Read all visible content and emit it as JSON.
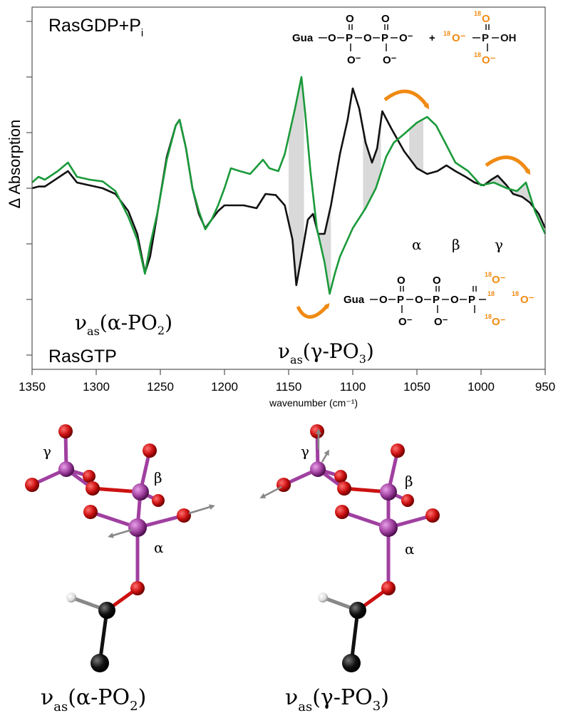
{
  "chart_data": {
    "type": "line",
    "xlabel": "wavenumber (cm⁻¹)",
    "ylabel": "Δ Absorption",
    "xlim": [
      1350,
      950
    ],
    "x_reversed": true,
    "x_ticks": [
      "1350",
      "1300",
      "1250",
      "1200",
      "1150",
      "1100",
      "1050",
      "1000",
      "950"
    ],
    "y_tick_labels": "none",
    "grid": false,
    "y_units": "arbitrary",
    "series": [
      {
        "color": "#111111",
        "x": [
          1350,
          1345,
          1340,
          1330,
          1322,
          1315,
          1305,
          1295,
          1285,
          1275,
          1268,
          1262,
          1258,
          1252,
          1245,
          1238,
          1235,
          1230,
          1225,
          1220,
          1215,
          1210,
          1205,
          1200,
          1192,
          1185,
          1175,
          1168,
          1160,
          1153,
          1147,
          1144,
          1140,
          1135,
          1131,
          1127,
          1122,
          1117,
          1110,
          1104,
          1100,
          1095,
          1090,
          1085,
          1081,
          1077,
          1070,
          1060,
          1050,
          1042,
          1034,
          1027,
          1020,
          1012,
          1005,
          998,
          992,
          987,
          980,
          975,
          968,
          962,
          955,
          950
        ],
        "y": [
          0.0,
          0.03,
          0.03,
          0.18,
          0.3,
          0.1,
          0.05,
          0.0,
          -0.1,
          -0.4,
          -0.8,
          -1.48,
          -1.2,
          -0.4,
          0.55,
          1.1,
          1.2,
          0.7,
          0.0,
          -0.45,
          -0.7,
          -0.55,
          -0.4,
          -0.3,
          -0.3,
          -0.3,
          -0.35,
          -0.1,
          -0.12,
          -0.3,
          -0.9,
          -1.7,
          -1.2,
          -0.55,
          -0.45,
          -0.8,
          -0.8,
          -0.3,
          0.6,
          1.2,
          1.75,
          1.4,
          0.8,
          0.45,
          0.7,
          1.35,
          1.05,
          0.65,
          0.35,
          0.25,
          0.3,
          0.4,
          0.3,
          0.2,
          0.1,
          0.05,
          0.15,
          0.22,
          0.05,
          -0.1,
          -0.15,
          -0.25,
          -0.45,
          -0.7
        ]
      },
      {
        "color": "#1a9a3a",
        "x": [
          1350,
          1345,
          1340,
          1330,
          1322,
          1315,
          1305,
          1295,
          1285,
          1275,
          1268,
          1262,
          1258,
          1252,
          1245,
          1238,
          1235,
          1230,
          1225,
          1220,
          1215,
          1210,
          1205,
          1200,
          1195,
          1188,
          1180,
          1170,
          1165,
          1158,
          1153,
          1150,
          1145,
          1140,
          1137,
          1133,
          1128,
          1122,
          1118,
          1114,
          1110,
          1100,
          1090,
          1082,
          1074,
          1068,
          1060,
          1050,
          1042,
          1035,
          1028,
          1020,
          1010,
          1000,
          990,
          980,
          972,
          965,
          958,
          950
        ],
        "y": [
          0.1,
          0.2,
          0.15,
          0.3,
          0.45,
          0.2,
          0.15,
          0.12,
          -0.05,
          -0.5,
          -0.9,
          -1.5,
          -1.0,
          -0.4,
          0.5,
          1.1,
          1.2,
          0.7,
          0.0,
          -0.4,
          -0.72,
          -0.55,
          -0.3,
          0.0,
          0.35,
          0.3,
          0.25,
          0.5,
          0.35,
          0.3,
          0.6,
          0.9,
          1.4,
          1.95,
          1.3,
          0.3,
          -0.7,
          -1.3,
          -1.85,
          -1.5,
          -1.2,
          -0.7,
          -0.35,
          0.0,
          0.55,
          0.8,
          0.95,
          1.15,
          1.25,
          1.1,
          0.8,
          0.45,
          0.3,
          0.05,
          0.1,
          0.0,
          -0.05,
          0.1,
          -0.4,
          -0.8
        ]
      }
    ],
    "shaded_regions": [
      {
        "x": [
          1150,
          1138
        ],
        "fill": "#d9d9d9"
      },
      {
        "x": [
          1128,
          1117
        ],
        "fill": "#d9d9d9"
      },
      {
        "x": [
          1092,
          1078
        ],
        "fill": "#d9d9d9"
      },
      {
        "x": [
          1056,
          1045
        ],
        "fill": "#d9d9d9"
      },
      {
        "x": [
          1005,
          955
        ],
        "fill": "#d9d9d9"
      }
    ]
  },
  "annotations": {
    "top_left": {
      "main": "RasGDP+P",
      "sub": "i"
    },
    "bottom_left": "RasGTP",
    "alpha_peak": {
      "nu": "ν",
      "sub": "as",
      "body": "(α-PO",
      "num": "2",
      "close": ")"
    },
    "gamma_peak": {
      "nu": "ν",
      "sub": "as",
      "body": "(γ-PO",
      "num": "3",
      "close": ")"
    },
    "greek_labels": [
      "α",
      "β",
      "γ"
    ]
  },
  "formula_gdp": {
    "gua": "Gua",
    "atoms": [
      "O",
      "P",
      "O",
      "P",
      "O⁻",
      "O",
      "O",
      "O⁻",
      "O⁻"
    ],
    "plus": "+",
    "pi_iso": "18",
    "pi_atoms": [
      "O",
      "O⁻",
      "P",
      "OH",
      "O⁻"
    ]
  },
  "formula_gtp": {
    "gua": "Gua",
    "atoms": [
      "O",
      "P",
      "O",
      "P",
      "O",
      "P",
      "O",
      "O",
      "O",
      "O⁻",
      "O⁻"
    ],
    "iso": "18",
    "labeled": [
      "O⁻",
      "O⁻",
      "O⁻"
    ]
  },
  "molecules": [
    {
      "greek": [
        "γ",
        "β",
        "α"
      ],
      "caption": {
        "nu": "ν",
        "sub": "as",
        "body": "(α-PO",
        "num": "2",
        "close": ")"
      }
    },
    {
      "greek": [
        "γ",
        "β",
        "α"
      ],
      "caption": {
        "nu": "ν",
        "sub": "as",
        "body": "(γ-PO",
        "num": "3",
        "close": ")"
      }
    }
  ],
  "colors": {
    "black": "#111111",
    "green": "#1a9a3a",
    "orange": "#f08a12",
    "phosphorus": "#a040a0",
    "oxygen": "#cc1111",
    "carbon": "#111111",
    "hydrogen": "#e8e8e8",
    "shade": "#d9d9d9"
  }
}
